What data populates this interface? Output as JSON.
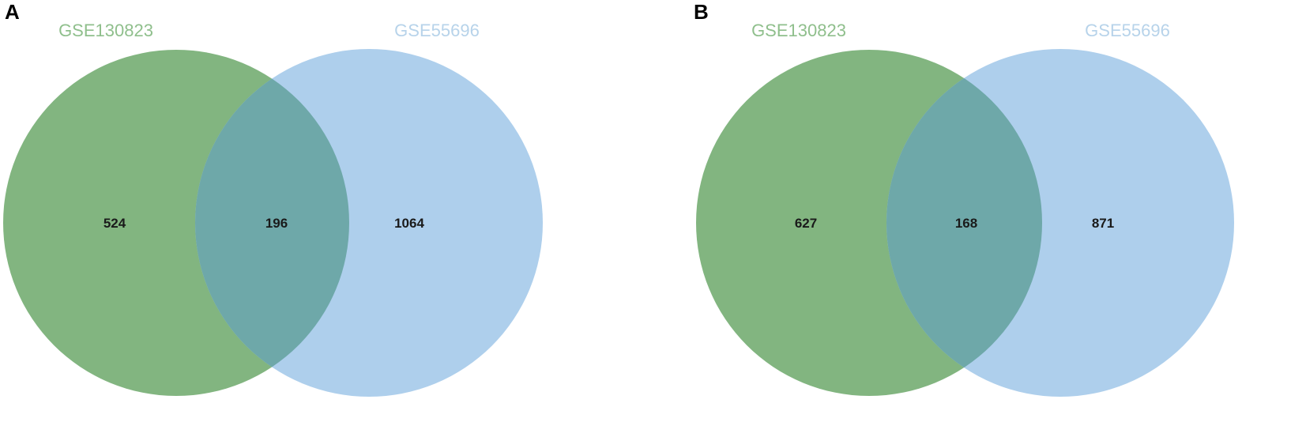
{
  "colors": {
    "set_a": "#82b580",
    "set_b": "#aecfec",
    "overlap": "#6ea8a9",
    "set_a_label": "#8fbf8c",
    "set_b_label": "#b7d3ea"
  },
  "panels": [
    {
      "letter": "A",
      "set_a": {
        "label": "GSE130823",
        "only": "524"
      },
      "set_b": {
        "label": "GSE55696",
        "only": "1064"
      },
      "intersection": "196"
    },
    {
      "letter": "B",
      "set_a": {
        "label": "GSE130823",
        "only": "627"
      },
      "set_b": {
        "label": "GSE55696",
        "only": "871"
      },
      "intersection": "168"
    }
  ]
}
